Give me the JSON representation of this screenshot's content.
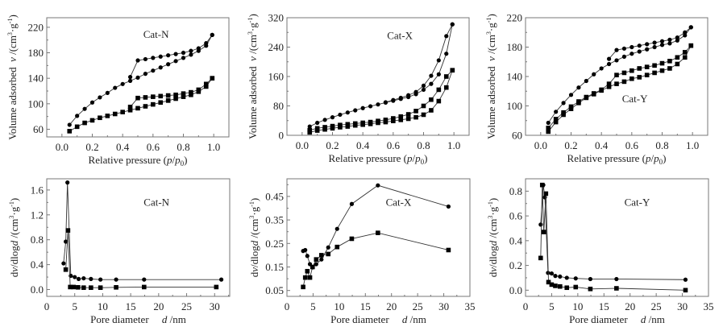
{
  "chart_data": [
    {
      "type": "line",
      "annotation": "Cat-N",
      "xlabel": "Relative pressure  (p/p0)",
      "xlabel_parts": [
        "Relative pressure  (",
        "p",
        "/",
        "p",
        "0",
        ")"
      ],
      "ylabel": "Volume adsorbed  v /(cm3·g-1)",
      "xlim": [
        -0.1,
        1.1
      ],
      "ylim": [
        48,
        235
      ],
      "xticks": [
        0.0,
        0.2,
        0.4,
        0.6,
        0.8,
        1.0
      ],
      "xtick_labels": [
        "0.0",
        "0.2",
        "0.4",
        "0.6",
        "0.8",
        "1.0"
      ],
      "yticks": [
        60,
        100,
        140,
        180,
        220
      ],
      "ytick_labels": [
        "60",
        "100",
        "140",
        "180",
        "220"
      ],
      "series": [
        {
          "name": "circle-adsorption",
          "marker": "circle",
          "x": [
            0.05,
            0.1,
            0.15,
            0.2,
            0.25,
            0.3,
            0.35,
            0.4,
            0.45,
            0.5,
            0.55,
            0.6,
            0.65,
            0.7,
            0.75,
            0.8,
            0.85,
            0.9,
            0.95,
            0.99
          ],
          "y": [
            67,
            81,
            92,
            102,
            110,
            117,
            125,
            131,
            136,
            141,
            147,
            152,
            157,
            162,
            167,
            172,
            177,
            183,
            191,
            208
          ]
        },
        {
          "name": "circle-desorption",
          "marker": "circle",
          "x": [
            0.45,
            0.5,
            0.55,
            0.6,
            0.65,
            0.7,
            0.75,
            0.8,
            0.85,
            0.9,
            0.95,
            0.99
          ],
          "y": [
            142,
            168,
            170,
            172,
            174,
            176,
            178,
            180,
            183,
            187,
            195,
            208
          ]
        },
        {
          "name": "square-adsorption",
          "marker": "square",
          "x": [
            0.05,
            0.1,
            0.15,
            0.2,
            0.25,
            0.3,
            0.35,
            0.4,
            0.45,
            0.5,
            0.55,
            0.6,
            0.65,
            0.7,
            0.75,
            0.8,
            0.85,
            0.9,
            0.95,
            0.99
          ],
          "y": [
            57,
            64,
            70,
            74,
            78,
            81,
            84,
            87,
            90,
            93,
            96,
            99,
            102,
            105,
            108,
            111,
            114,
            119,
            127,
            140
          ]
        },
        {
          "name": "square-desorption",
          "marker": "square",
          "x": [
            0.45,
            0.5,
            0.55,
            0.6,
            0.65,
            0.7,
            0.75,
            0.8,
            0.85,
            0.9,
            0.95,
            0.99
          ],
          "y": [
            95,
            109,
            110,
            111,
            112,
            113,
            114,
            116,
            118,
            122,
            131,
            140
          ]
        }
      ]
    },
    {
      "type": "line",
      "annotation": "Cat-X",
      "xlabel": "Relative pressure  (p/p0)",
      "xlabel_parts": [
        "Relative pressure  (",
        "p",
        "/",
        "p",
        "0",
        ")"
      ],
      "ylabel": "Volume adsorbed  v /(cm3·g-1)",
      "xlim": [
        -0.1,
        1.1
      ],
      "ylim": [
        0,
        320
      ],
      "xticks": [
        0.0,
        0.2,
        0.4,
        0.6,
        0.8,
        1.0
      ],
      "xtick_labels": [
        "0.0",
        "0.2",
        "0.4",
        "0.6",
        "0.8",
        "1.0"
      ],
      "yticks": [
        0,
        80,
        160,
        240,
        320
      ],
      "ytick_labels": [
        "0",
        "80",
        "160",
        "240",
        "320"
      ],
      "series": [
        {
          "name": "circle-adsorption",
          "marker": "circle",
          "x": [
            0.05,
            0.1,
            0.15,
            0.2,
            0.25,
            0.3,
            0.35,
            0.4,
            0.45,
            0.5,
            0.55,
            0.6,
            0.65,
            0.7,
            0.75,
            0.8,
            0.85,
            0.9,
            0.95,
            0.99
          ],
          "y": [
            24,
            34,
            42,
            49,
            56,
            62,
            68,
            74,
            79,
            84,
            89,
            94,
            99,
            104,
            112,
            124,
            140,
            166,
            222,
            302
          ]
        },
        {
          "name": "circle-desorption",
          "marker": "circle",
          "x": [
            0.55,
            0.6,
            0.65,
            0.7,
            0.75,
            0.8,
            0.85,
            0.9,
            0.95,
            0.99
          ],
          "y": [
            90,
            96,
            102,
            109,
            118,
            135,
            162,
            204,
            270,
            302
          ]
        },
        {
          "name": "square-adsorption",
          "marker": "square",
          "x": [
            0.05,
            0.1,
            0.15,
            0.2,
            0.25,
            0.3,
            0.35,
            0.4,
            0.45,
            0.5,
            0.55,
            0.6,
            0.65,
            0.7,
            0.75,
            0.8,
            0.85,
            0.9,
            0.95,
            0.99
          ],
          "y": [
            8,
            13,
            16,
            19,
            22,
            24,
            27,
            29,
            31,
            34,
            36,
            39,
            42,
            45,
            49,
            56,
            68,
            93,
            130,
            177
          ]
        },
        {
          "name": "square-desorption",
          "marker": "square",
          "x": [
            0.05,
            0.1,
            0.15,
            0.2,
            0.25,
            0.3,
            0.35,
            0.4,
            0.45,
            0.5,
            0.55,
            0.6,
            0.65,
            0.7,
            0.75,
            0.8,
            0.85,
            0.9,
            0.95,
            0.99
          ],
          "y": [
            14,
            19,
            22,
            25,
            28,
            30,
            32,
            34,
            36,
            39,
            42,
            46,
            51,
            57,
            66,
            80,
            97,
            124,
            160,
            177
          ]
        }
      ]
    },
    {
      "type": "line",
      "annotation": "Cat-Y",
      "xlabel": "Relative pressure  (p/p0)",
      "xlabel_parts": [
        "Relative pressure  (",
        "p",
        "/",
        "p",
        "0",
        ")"
      ],
      "ylabel": "Volume adsorbed  v /(cm3·g-1)",
      "xlim": [
        -0.1,
        1.1
      ],
      "ylim": [
        60,
        220
      ],
      "xticks": [
        0.0,
        0.2,
        0.4,
        0.6,
        0.8,
        1.0
      ],
      "xtick_labels": [
        "0.0",
        "0.2",
        "0.4",
        "0.6",
        "0.8",
        "1.0"
      ],
      "yticks": [
        60,
        100,
        140,
        180,
        220
      ],
      "ytick_labels": [
        "60",
        "100",
        "140",
        "180",
        "220"
      ],
      "series": [
        {
          "name": "circle-adsorption",
          "marker": "circle",
          "x": [
            0.05,
            0.1,
            0.15,
            0.2,
            0.25,
            0.3,
            0.35,
            0.4,
            0.45,
            0.5,
            0.55,
            0.6,
            0.65,
            0.7,
            0.75,
            0.8,
            0.85,
            0.9,
            0.95,
            0.99
          ],
          "y": [
            77,
            92,
            104,
            115,
            125,
            134,
            143,
            151,
            157,
            162,
            167,
            171,
            174,
            177,
            180,
            183,
            185,
            189,
            196,
            207
          ]
        },
        {
          "name": "circle-desorption",
          "marker": "circle",
          "x": [
            0.45,
            0.5,
            0.55,
            0.6,
            0.65,
            0.7,
            0.75,
            0.8,
            0.85,
            0.9,
            0.95,
            0.99
          ],
          "y": [
            164,
            176,
            178,
            180,
            182,
            184,
            186,
            188,
            190,
            193,
            200,
            207
          ]
        },
        {
          "name": "square-adsorption",
          "marker": "square",
          "x": [
            0.05,
            0.1,
            0.15,
            0.2,
            0.25,
            0.3,
            0.35,
            0.4,
            0.45,
            0.5,
            0.55,
            0.6,
            0.65,
            0.7,
            0.75,
            0.8,
            0.85,
            0.9,
            0.95,
            0.99
          ],
          "y": [
            65,
            78,
            88,
            96,
            104,
            111,
            116,
            121,
            126,
            130,
            133,
            137,
            139,
            142,
            145,
            148,
            151,
            157,
            166,
            182
          ]
        },
        {
          "name": "square-desorption",
          "marker": "square",
          "x": [
            0.05,
            0.1,
            0.15,
            0.2,
            0.25,
            0.3,
            0.35,
            0.4,
            0.45,
            0.5,
            0.55,
            0.6,
            0.65,
            0.7,
            0.75,
            0.8,
            0.85,
            0.9,
            0.95,
            0.99
          ],
          "y": [
            70,
            82,
            91,
            99,
            106,
            112,
            117,
            122,
            130,
            142,
            145,
            148,
            151,
            153,
            155,
            158,
            161,
            166,
            173,
            182
          ]
        }
      ]
    },
    {
      "type": "line",
      "annotation": "Cat-N",
      "xlabel": "Pore diameter    d /nm",
      "xlabel_parts": [
        "Pore diameter",
        "d",
        "/nm"
      ],
      "ylabel": "dv/dlogd /(cm3·g-1)",
      "xlim": [
        0,
        32.7
      ],
      "ylim": [
        -0.11,
        1.78
      ],
      "xticks": [
        0,
        5,
        10,
        15,
        20,
        25,
        30
      ],
      "xtick_labels": [
        "0",
        "5",
        "10",
        "15",
        "20",
        "25",
        "30"
      ],
      "yticks": [
        0.0,
        0.4,
        0.8,
        1.2,
        1.6
      ],
      "ytick_labels": [
        "0.0",
        "0.4",
        "0.8",
        "1.2",
        "1.6"
      ],
      "series": [
        {
          "name": "circle-series",
          "marker": "circle",
          "x": [
            3.0,
            3.4,
            3.7,
            4.3,
            5.0,
            5.7,
            6.6,
            7.9,
            9.6,
            12.4,
            17.4,
            31.2
          ],
          "y": [
            0.42,
            0.77,
            1.72,
            0.22,
            0.2,
            0.17,
            0.18,
            0.17,
            0.16,
            0.16,
            0.16,
            0.16
          ]
        },
        {
          "name": "square-series",
          "marker": "square",
          "x": [
            3.4,
            3.8,
            4.2,
            4.8,
            5.6,
            6.6,
            7.9,
            9.6,
            12.4,
            17.4,
            30.3
          ],
          "y": [
            0.32,
            0.95,
            0.04,
            0.04,
            0.035,
            0.03,
            0.03,
            0.03,
            0.035,
            0.04,
            0.04
          ]
        }
      ]
    },
    {
      "type": "line",
      "annotation": "Cat-X",
      "xlabel": "Pore diameter    d /nm",
      "xlabel_parts": [
        "Pore diameter",
        "d",
        "/nm"
      ],
      "ylabel": "dv/dlogd /(cm3·g-1)",
      "xlim": [
        0,
        35
      ],
      "ylim": [
        0.025,
        0.525
      ],
      "xticks": [
        0,
        5,
        10,
        15,
        20,
        25,
        30,
        35
      ],
      "xtick_labels": [
        "0",
        "5",
        "10",
        "15",
        "20",
        "25",
        "30",
        "35"
      ],
      "yticks": [
        0.05,
        0.15,
        0.25,
        0.35,
        0.45
      ],
      "ytick_labels": [
        "0.05",
        "0.15",
        "0.25",
        "0.35",
        "0.45"
      ],
      "series": [
        {
          "name": "circle-series",
          "marker": "circle",
          "x": [
            3.1,
            3.5,
            3.9,
            4.4,
            4.9,
            5.6,
            6.6,
            7.9,
            9.6,
            12.4,
            17.4,
            30.9
          ],
          "y": [
            0.218,
            0.222,
            0.197,
            0.162,
            0.148,
            0.162,
            0.182,
            0.233,
            0.312,
            0.418,
            0.497,
            0.407
          ]
        },
        {
          "name": "square-series",
          "marker": "square",
          "x": [
            3.1,
            3.5,
            3.9,
            4.4,
            4.9,
            5.6,
            6.6,
            7.9,
            9.6,
            12.4,
            17.4,
            30.9
          ],
          "y": [
            0.065,
            0.105,
            0.132,
            0.105,
            0.15,
            0.182,
            0.2,
            0.205,
            0.235,
            0.27,
            0.295,
            0.222
          ]
        }
      ]
    },
    {
      "type": "line",
      "annotation": "Cat-Y",
      "xlabel": "Pore diameter    d /nm",
      "xlabel_parts": [
        "Pore diameter",
        "d",
        "/nm"
      ],
      "ylabel": "dv/dlogd /(cm3·g-1)",
      "xlim": [
        0,
        35
      ],
      "ylim": [
        -0.05,
        0.9
      ],
      "xticks": [
        0,
        5,
        10,
        15,
        20,
        25,
        30,
        35
      ],
      "xtick_labels": [
        "0",
        "5",
        "10",
        "15",
        "20",
        "25",
        "30",
        "35"
      ],
      "yticks": [
        0.0,
        0.2,
        0.4,
        0.6,
        0.8
      ],
      "ytick_labels": [
        "0.0",
        "0.2",
        "0.4",
        "0.6",
        "0.8"
      ],
      "series": [
        {
          "name": "circle-series",
          "marker": "circle",
          "x": [
            2.9,
            3.4,
            3.7,
            4.3,
            5.0,
            5.7,
            6.6,
            7.9,
            9.6,
            12.4,
            17.4,
            30.6
          ],
          "y": [
            0.53,
            0.85,
            0.75,
            0.14,
            0.135,
            0.115,
            0.11,
            0.1,
            0.095,
            0.09,
            0.09,
            0.085
          ]
        },
        {
          "name": "square-series",
          "marker": "square",
          "x": [
            2.9,
            3.2,
            3.5,
            3.9,
            4.4,
            5.0,
            5.7,
            6.6,
            7.9,
            9.6,
            12.4,
            17.4,
            30.6
          ],
          "y": [
            0.26,
            0.85,
            0.47,
            0.78,
            0.065,
            0.045,
            0.035,
            0.03,
            0.02,
            0.025,
            0.01,
            0.015,
            0.0
          ]
        }
      ]
    }
  ]
}
